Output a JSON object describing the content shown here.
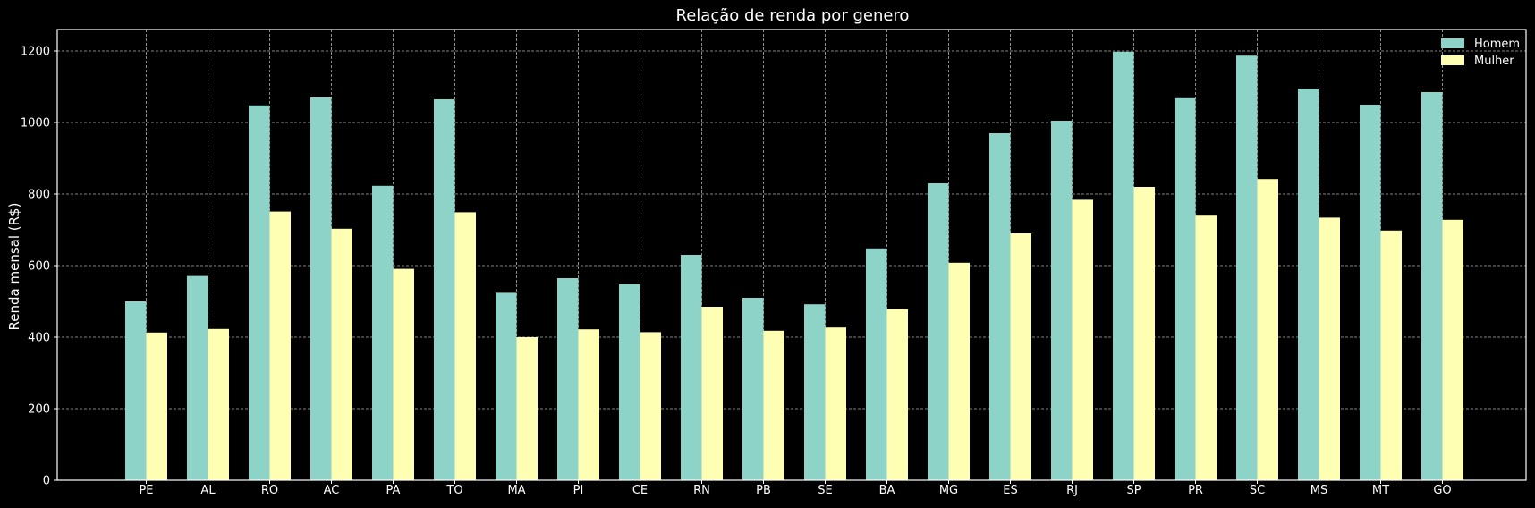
{
  "chart_data": {
    "type": "bar",
    "title": "Relação de renda por genero",
    "xlabel": "",
    "ylabel": "Renda mensal (R$)",
    "ylim": [
      0,
      1260
    ],
    "yticks": [
      0,
      200,
      400,
      600,
      800,
      1000,
      1200
    ],
    "grid": true,
    "legend_position": "top-right",
    "categories": [
      "PE",
      "AL",
      "RO",
      "AC",
      "PA",
      "TO",
      "MA",
      "PI",
      "CE",
      "RN",
      "PB",
      "SE",
      "BA",
      "MG",
      "ES",
      "RJ",
      "SP",
      "PR",
      "SC",
      "MS",
      "MT",
      "GO"
    ],
    "series": [
      {
        "name": "Homem",
        "color": "#8dd3c7",
        "values": [
          500,
          571,
          1048,
          1070,
          823,
          1065,
          524,
          565,
          548,
          630,
          510,
          492,
          648,
          830,
          970,
          1005,
          1198,
          1068,
          1187,
          1095,
          1050,
          1085
        ]
      },
      {
        "name": "Mulher",
        "color": "#ffffb3",
        "values": [
          413,
          423,
          751,
          703,
          591,
          749,
          400,
          422,
          414,
          485,
          418,
          427,
          478,
          608,
          690,
          784,
          820,
          742,
          842,
          734,
          698,
          728
        ]
      }
    ]
  },
  "colors": {
    "background": "#000000",
    "axes": "#ffffff",
    "grid": "#b0b0b0",
    "text": "#ffffff"
  }
}
